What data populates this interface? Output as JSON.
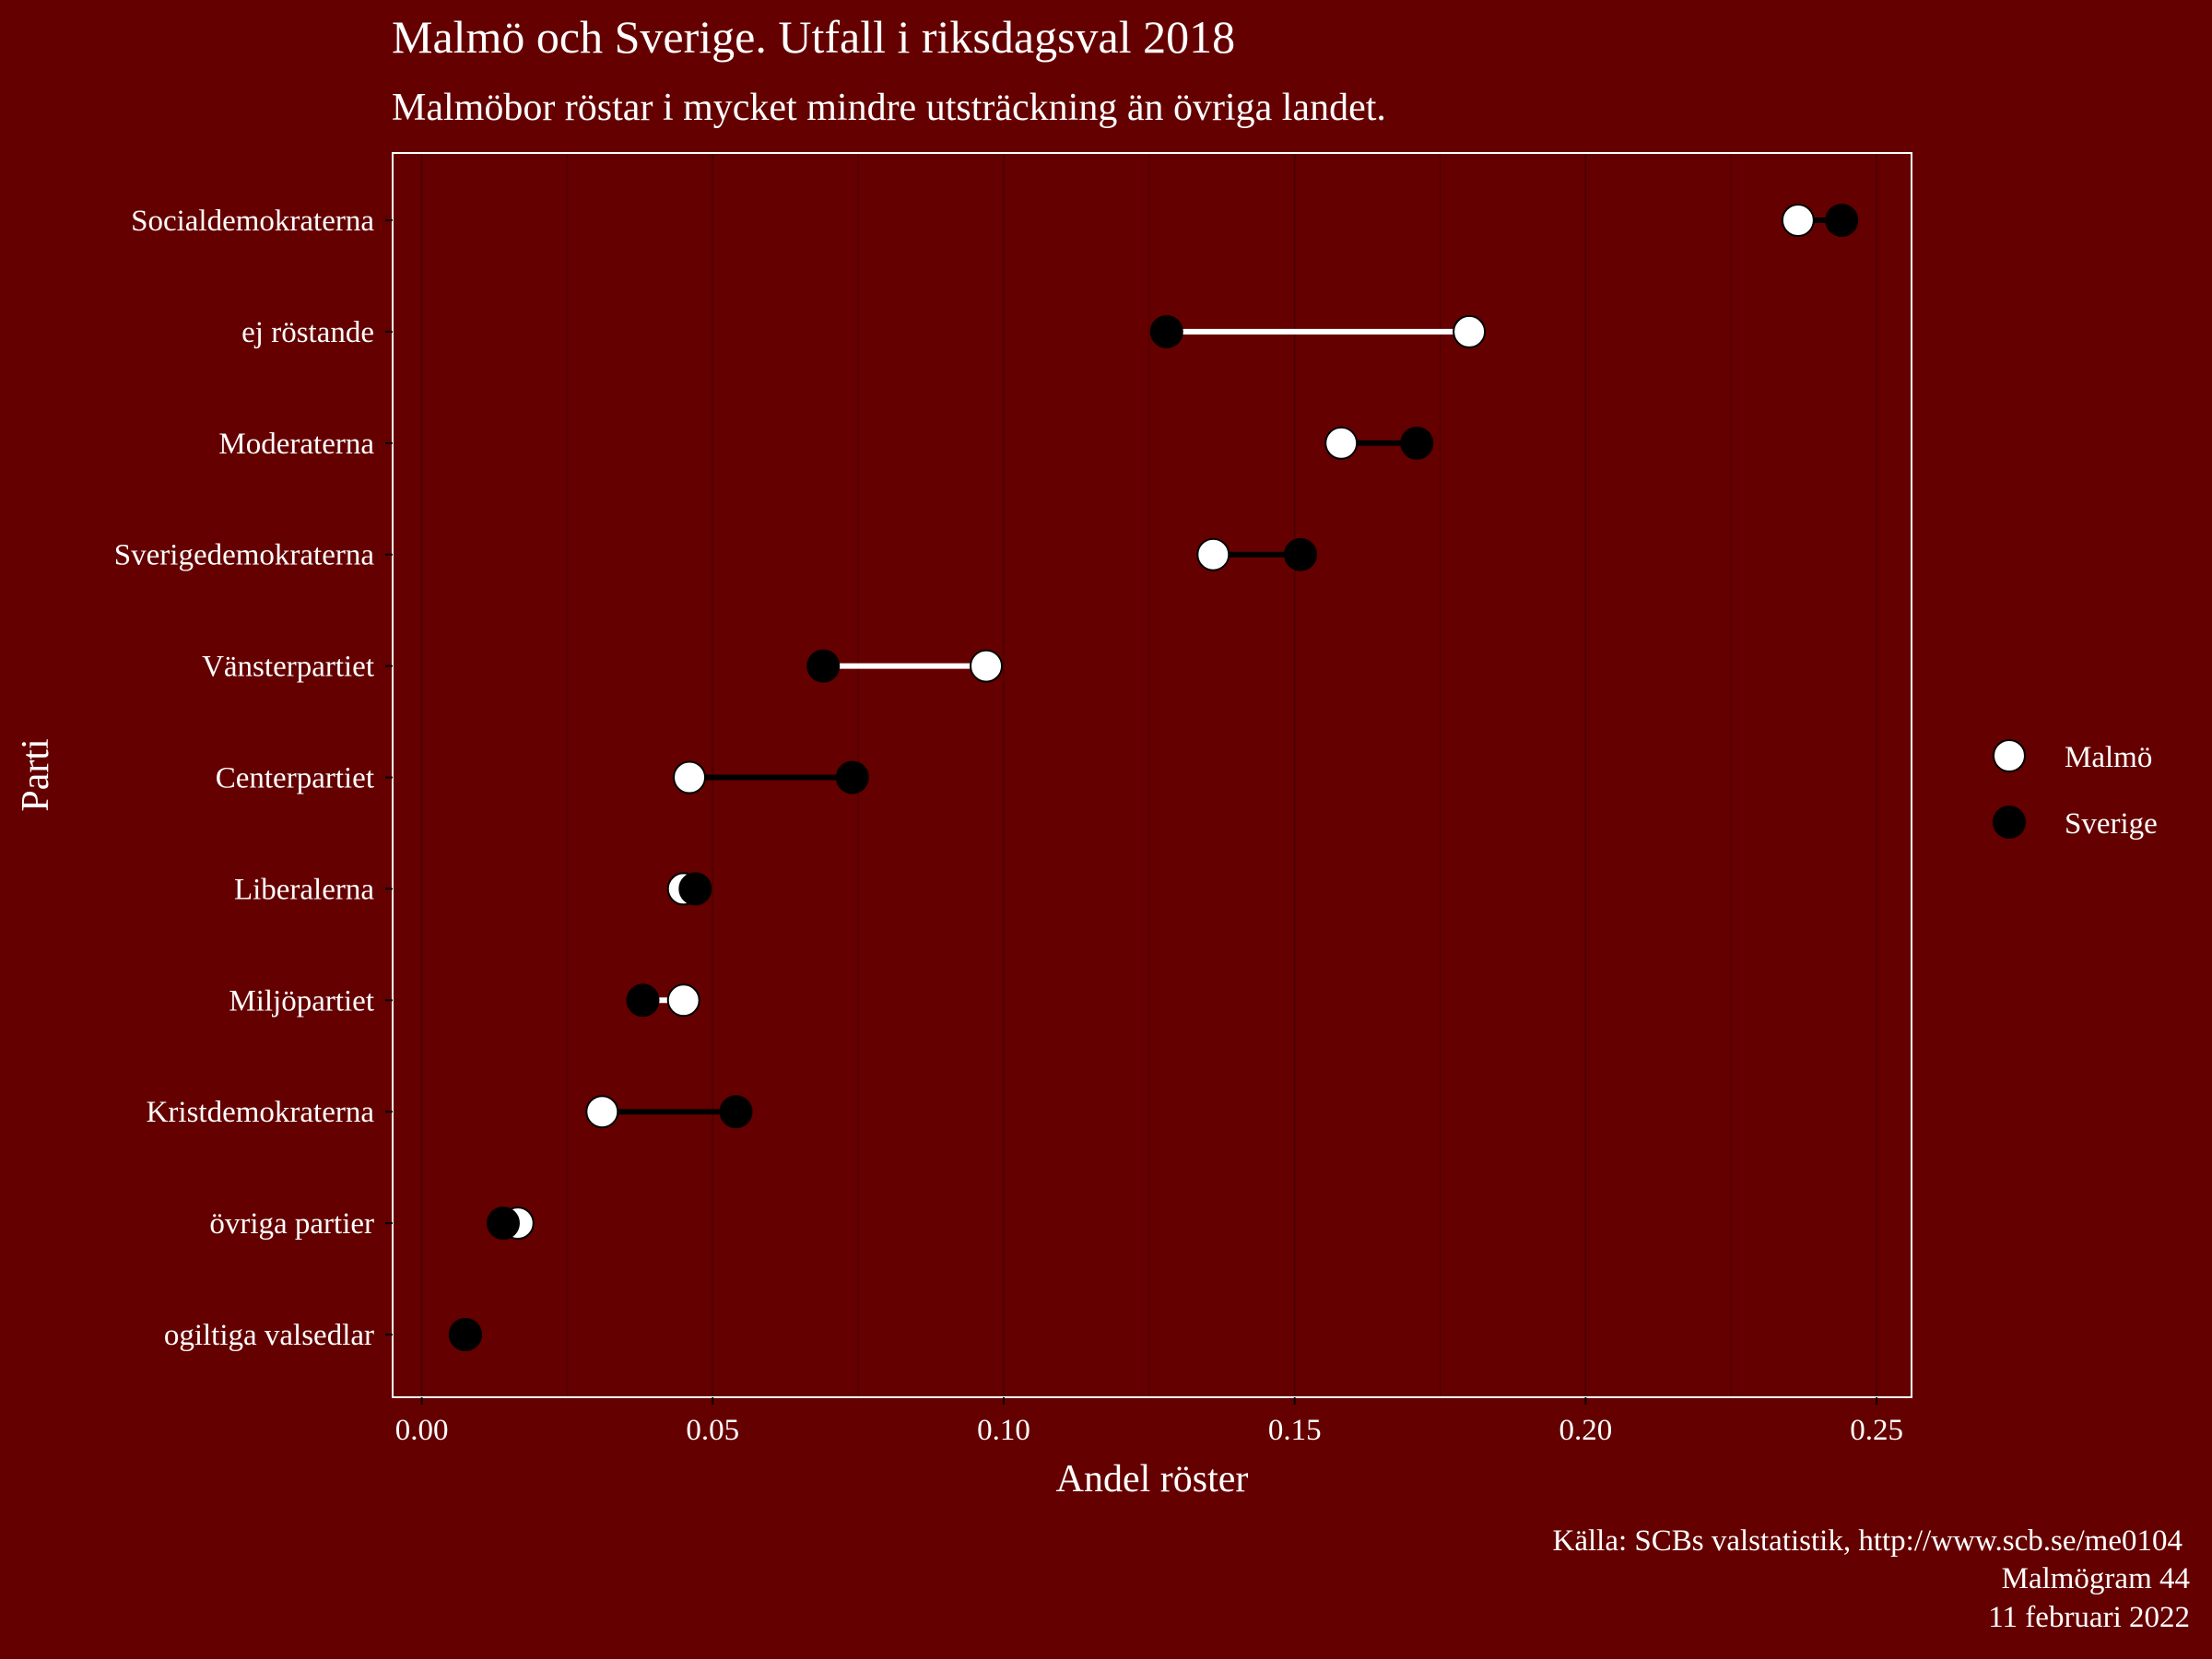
{
  "chart_data": {
    "type": "dumbbell",
    "title": "Malmö och Sverige. Utfall i riksdagsval 2018",
    "subtitle": "Malmöbor röstar i mycket mindre utsträckning än övriga landet.",
    "xlabel": "Andel röster",
    "ylabel": "Parti",
    "xlim": [
      -0.005,
      0.256
    ],
    "xticks": [
      0.0,
      0.05,
      0.1,
      0.15,
      0.2,
      0.25
    ],
    "xtick_labels": [
      "0.00",
      "0.05",
      "0.10",
      "0.15",
      "0.20",
      "0.25"
    ],
    "grid": "vertical",
    "legend": {
      "placement": "right",
      "entries": [
        {
          "label": "Malmö",
          "color": "#ffffff"
        },
        {
          "label": "Sverige",
          "color": "#000000"
        }
      ]
    },
    "categories": [
      "Socialdemokraterna",
      "ej röstande",
      "Moderaterna",
      "Sverigedemokraterna",
      "Vänsterpartiet",
      "Centerpartiet",
      "Liberalerna",
      "Miljöpartiet",
      "Kristdemokraterna",
      "övriga partier",
      "ogiltiga valsedlar"
    ],
    "series": [
      {
        "name": "Malmö",
        "values": [
          0.2365,
          0.18,
          0.158,
          0.136,
          0.097,
          0.046,
          0.045,
          0.045,
          0.031,
          0.0165,
          0.0075
        ]
      },
      {
        "name": "Sverige",
        "values": [
          0.244,
          0.128,
          0.171,
          0.151,
          0.069,
          0.074,
          0.047,
          0.038,
          0.054,
          0.014,
          0.0075
        ]
      }
    ]
  },
  "caption": {
    "line1": "Källa: SCBs valstatistik, http://www.scb.se/me0104",
    "line2": "Malmögram 44",
    "line3": "11 februari 2022"
  },
  "colors": {
    "background": "#650000",
    "panel_border": "#ffffff",
    "gridline": "#4a0000",
    "malmo": "#ffffff",
    "sverige": "#000000"
  }
}
